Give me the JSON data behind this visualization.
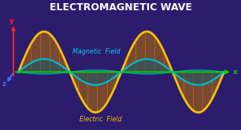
{
  "title": "ELECTROMAGNETIC WAVE",
  "title_color": "#ffffff",
  "title_fontsize": 9.0,
  "background_color": "#2d1b6e",
  "num_points": 500,
  "electric_wave_color": "#f5c000",
  "electric_wave_lw": 2.0,
  "magnetic_wave_color": "#00b8cc",
  "magnetic_wave_lw": 1.6,
  "electric_fill_color": "#b87000",
  "magnetic_fill_color": "#005a7a",
  "electric_fill_alpha": 0.55,
  "magnetic_fill_alpha": 0.45,
  "electric_label": "Electric  Field",
  "magnetic_label": "Magnetic  Field",
  "electric_label_color": "#f5c000",
  "magnetic_label_color": "#00d0e8",
  "label_fontsize": 5.8,
  "axis_label_fontsize": 6.5,
  "x_label": "x",
  "y_label": "y",
  "z_label": "z",
  "x_arrow_color": "#00d000",
  "y_arrow_color": "#ff2020",
  "z_arrow_color": "#3070ff",
  "amplitude_e": 1.0,
  "amplitude_m": 0.32,
  "num_field_lines": 22,
  "field_line_color_e": "#c88000",
  "field_line_alpha_e": 0.6,
  "field_line_lw": 0.6
}
